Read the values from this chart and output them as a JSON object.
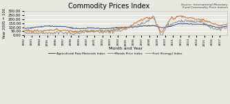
{
  "title": "Commodity Prices Index",
  "source_text": "Source: International Monetary\nFund Commodity Price Indices",
  "xlabel": "Month and Year",
  "ylabel": "Year 2005 = 100",
  "ylim": [
    0,
    300
  ],
  "yticks": [
    0,
    50,
    100,
    150,
    200,
    250,
    300
  ],
  "background_color": "#e8e8e0",
  "plot_background": "#e8e8e0",
  "line_colors": {
    "agri": "#2e4a8c",
    "metals": "#c87030",
    "fuel": "#909090"
  },
  "legend_labels": [
    "Agricultural Raw Materials Index",
    "Metals Price Index",
    "Fuel (Energy) Index"
  ],
  "xtick_labels": [
    "1992",
    "1993",
    "1994",
    "1995",
    "1996",
    "1997",
    "1998",
    "1999",
    "2000",
    "2001",
    "2002",
    "2003",
    "2004",
    "2005",
    "2006",
    "2007",
    "2008",
    "2009",
    "2010",
    "2011",
    "2012",
    "2013",
    "2014",
    "2015",
    "2016",
    "2017"
  ],
  "agri_base": [
    90,
    93,
    107,
    117,
    112,
    110,
    88,
    84,
    90,
    88,
    85,
    90,
    98,
    100,
    108,
    118,
    122,
    94,
    112,
    145,
    143,
    140,
    138,
    120,
    93,
    115
  ],
  "metals_base": [
    65,
    60,
    55,
    60,
    62,
    59,
    48,
    48,
    57,
    53,
    55,
    67,
    90,
    100,
    172,
    200,
    190,
    90,
    170,
    245,
    220,
    208,
    192,
    162,
    118,
    140
  ],
  "fuel_base": [
    32,
    29,
    24,
    27,
    34,
    34,
    23,
    33,
    55,
    42,
    43,
    44,
    63,
    100,
    118,
    132,
    185,
    78,
    128,
    178,
    178,
    172,
    168,
    88,
    72,
    98
  ]
}
